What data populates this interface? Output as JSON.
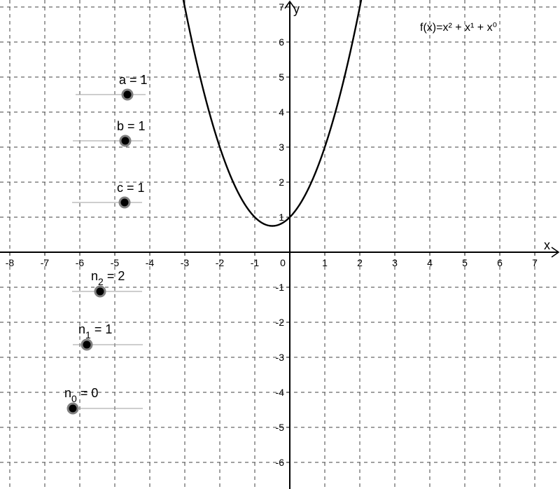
{
  "graph": {
    "x_axis": {
      "name": "x",
      "ticks": [
        "-8",
        "-7",
        "-6",
        "-5",
        "-4",
        "-3",
        "-2",
        "-1",
        "0",
        "1",
        "2",
        "3",
        "4",
        "5",
        "6",
        "7"
      ]
    },
    "y_axis": {
      "name": "y",
      "ticks": [
        "7",
        "6",
        "5",
        "4",
        "3",
        "2",
        "1",
        "-1",
        "-2",
        "-3",
        "-4",
        "-5",
        "-6"
      ]
    },
    "grid": "dashed"
  },
  "function": {
    "label": "f(x)=x² + x¹ + x⁰",
    "coefficients": {
      "a": 1,
      "b": 1,
      "c": 1
    },
    "exponents": {
      "n2": 2,
      "n1": 1,
      "n0": 0
    }
  },
  "sliders": [
    {
      "id": "a",
      "text": "a = 1"
    },
    {
      "id": "b",
      "text": "b = 1"
    },
    {
      "id": "c",
      "text": "c = 1"
    },
    {
      "id": "n2",
      "base": "n",
      "sub": "2",
      "rest": " = 2"
    },
    {
      "id": "n1",
      "base": "n",
      "sub": "1",
      "rest": " = 1"
    },
    {
      "id": "n0",
      "base": "n",
      "sub": "0",
      "rest": " = 0"
    }
  ],
  "colors": {
    "curve": "#000000",
    "grid": "#404040",
    "slider_track": "#9e9e9e",
    "slider_point": "#000000",
    "slider_halo": "#808080"
  }
}
